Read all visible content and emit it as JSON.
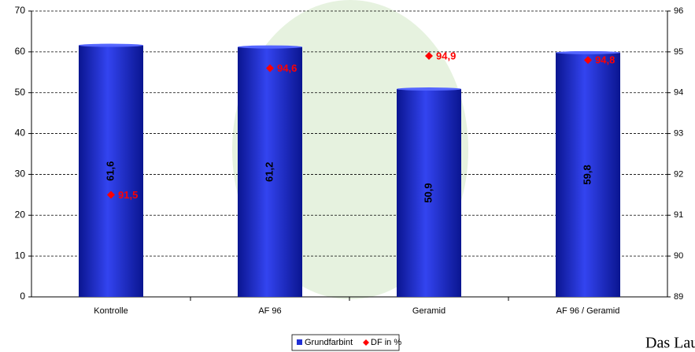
{
  "chart_data": {
    "type": "bar",
    "categories": [
      "Kontrolle",
      "AF 96",
      "Geramid",
      "AF 96 / Geramid"
    ],
    "series": [
      {
        "name": "Grundfarbint",
        "color": "#1f2fd6",
        "values": [
          61.6,
          61.2,
          50.9,
          59.8
        ],
        "value_labels": [
          "61,6",
          "61,2",
          "50,9",
          "59,8"
        ]
      },
      {
        "name": "DF in %",
        "color": "#ff0000",
        "axis": "y2",
        "values": [
          91.5,
          94.6,
          94.9,
          94.8
        ],
        "value_labels": [
          "91,5",
          "94,6",
          "94,9",
          "94,8"
        ]
      }
    ],
    "ylim": [
      0,
      70
    ],
    "yticks": [
      0,
      10,
      20,
      30,
      40,
      50,
      60,
      70
    ],
    "y2lim": [
      89,
      96
    ],
    "y2ticks": [
      89,
      90,
      91,
      92,
      93,
      94,
      95,
      96
    ],
    "grid": true,
    "legend": "bottom"
  },
  "logo": "Das Lau"
}
